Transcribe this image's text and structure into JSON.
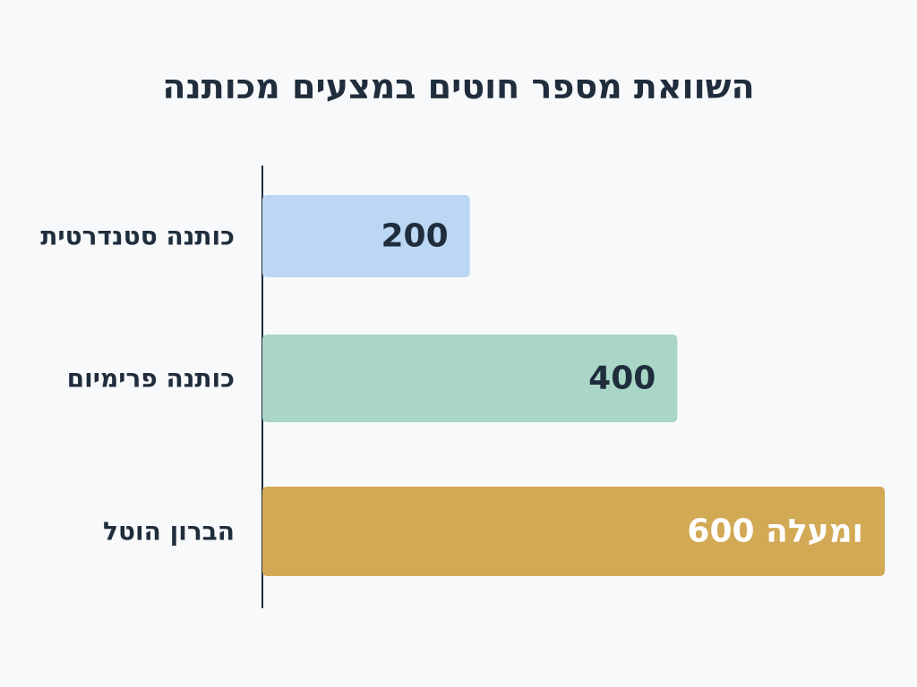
{
  "chart_data": {
    "type": "bar",
    "orientation": "horizontal",
    "title": "השוואת מספר חוטים במצעים מכותנה",
    "categories": [
      "כותנה סטנדרטית",
      "כותנה פרימיום",
      "הברון הוטל"
    ],
    "values": [
      200,
      400,
      600
    ],
    "value_labels": [
      "200",
      "400",
      "600 ומעלה"
    ],
    "xlim": [
      0,
      600
    ],
    "grid": false,
    "legend": "none",
    "colors": [
      "#bcd7f4",
      "#a9d6c6",
      "#d2a954"
    ],
    "value_label_colors": [
      "#1f2d3d",
      "#1f2d3d",
      "#ffffff"
    ]
  }
}
